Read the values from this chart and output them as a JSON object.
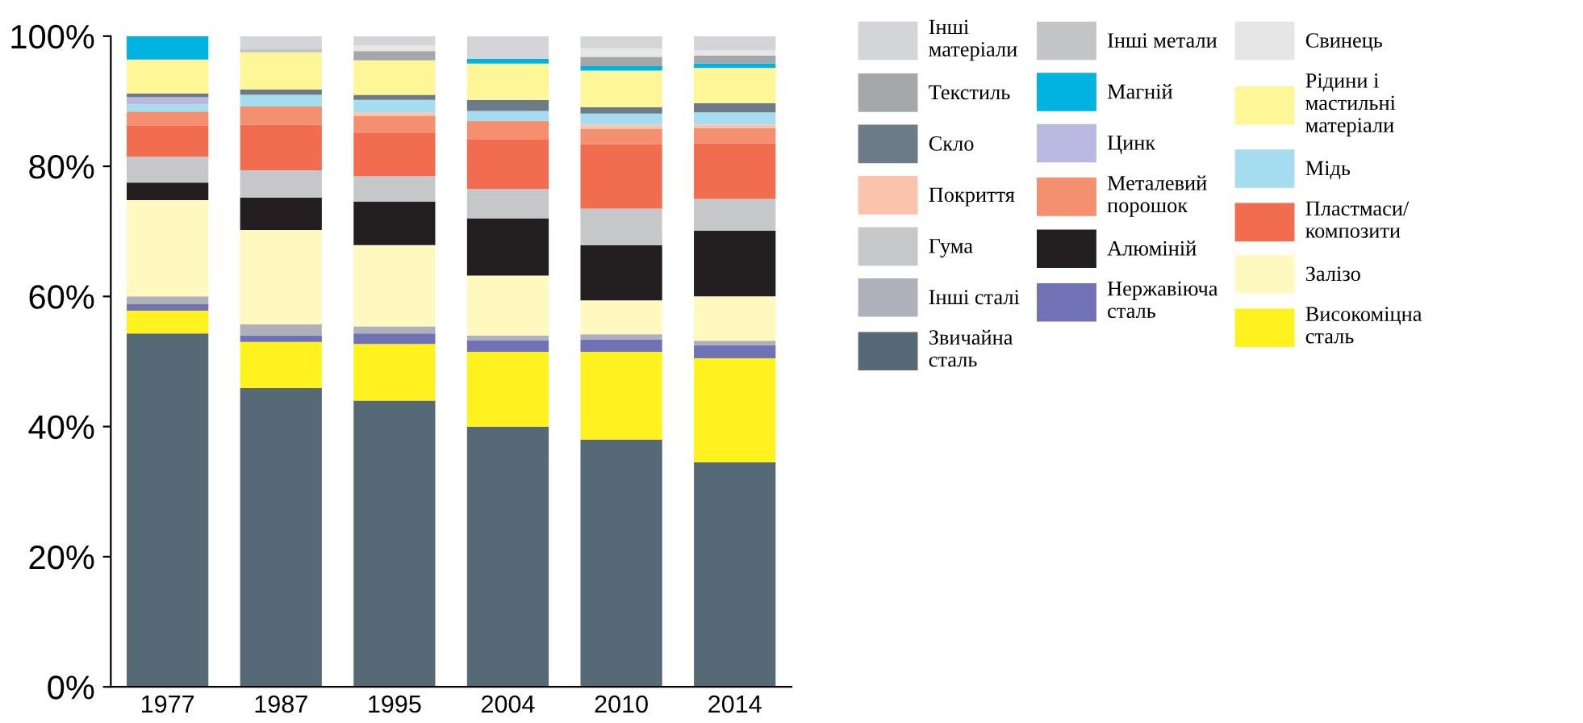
{
  "chart_data": {
    "type": "bar",
    "stacked": true,
    "categories": [
      "1977",
      "1987",
      "1995",
      "2004",
      "2010",
      "2014"
    ],
    "ylim": [
      0,
      100
    ],
    "yticks": [
      {
        "value": 0,
        "label": "0%"
      },
      {
        "value": 20,
        "label": "20%"
      },
      {
        "value": 40,
        "label": "40%"
      },
      {
        "value": 60,
        "label": "60%"
      },
      {
        "value": 80,
        "label": "80%"
      },
      {
        "value": 100,
        "label": "100%"
      }
    ],
    "grid": false,
    "legend": "right",
    "series": [
      {
        "name": "Звичайна\nсталь",
        "color": "#566977",
        "values": [
          54.3,
          45.9,
          44.0,
          40.0,
          38.0,
          34.5
        ]
      },
      {
        "name": "Високоміцна\nсталь",
        "color": "#fff21f",
        "values": [
          3.5,
          7.1,
          8.7,
          11.5,
          13.5,
          16.0
        ]
      },
      {
        "name": "Нержавіюча\nсталь",
        "color": "#7172b5",
        "values": [
          1.0,
          1.0,
          1.6,
          1.8,
          1.9,
          2.0
        ]
      },
      {
        "name": "Інші сталі",
        "color": "#aeb1bb",
        "values": [
          1.2,
          1.7,
          1.1,
          0.7,
          0.8,
          0.7
        ]
      },
      {
        "name": "Залізо",
        "color": "#fff8bf",
        "values": [
          14.8,
          14.5,
          12.5,
          9.2,
          5.2,
          6.8
        ]
      },
      {
        "name": "Алюміній",
        "color": "#231f20",
        "values": [
          2.7,
          5.0,
          6.7,
          8.8,
          8.5,
          10.1
        ]
      },
      {
        "name": "Гума",
        "color": "#c6c7c9",
        "values": [
          4.0,
          4.2,
          3.9,
          4.5,
          5.6,
          4.9
        ]
      },
      {
        "name": "Пластмаси/\nкомпозити",
        "color": "#f26c4f",
        "values": [
          4.8,
          7.0,
          6.7,
          7.7,
          9.9,
          8.5
        ]
      },
      {
        "name": "Металевий\nпорошок",
        "color": "#f4906f",
        "values": [
          2.1,
          2.8,
          2.5,
          2.8,
          2.3,
          2.4
        ]
      },
      {
        "name": "Покриття",
        "color": "#f9c4ab",
        "values": [
          0,
          0,
          0.6,
          0,
          0.7,
          0.5
        ]
      },
      {
        "name": "Мідь",
        "color": "#a5dcf0",
        "values": [
          1.1,
          1.8,
          1.9,
          1.5,
          1.7,
          1.9
        ]
      },
      {
        "name": "Цинк",
        "color": "#b9b8e0",
        "values": [
          1.1,
          0,
          0,
          0,
          0,
          0
        ]
      },
      {
        "name": "Скло",
        "color": "#6d7b86",
        "values": [
          0.6,
          0.8,
          0.8,
          1.7,
          1.0,
          1.4
        ]
      },
      {
        "name": "Рідини і\nмастильні\nматеріали",
        "color": "#fff697",
        "values": [
          5.2,
          5.7,
          5.3,
          5.6,
          5.6,
          5.4
        ]
      },
      {
        "name": "Магній",
        "color": "#00b3e0",
        "values": [
          3.6,
          0,
          0,
          0.7,
          0.7,
          0.7
        ]
      },
      {
        "name": "Текстиль",
        "color": "#a6a7a9",
        "values": [
          0,
          0,
          1.4,
          0,
          1.4,
          1.2
        ]
      },
      {
        "name": "Свинець",
        "color": "#e6e6e7",
        "values": [
          0,
          0,
          0.9,
          0,
          1.3,
          0.8
        ]
      },
      {
        "name": "Інші метали",
        "color": "#c4c5c7",
        "values": [
          0,
          0.5,
          0,
          0,
          0,
          0
        ]
      },
      {
        "name": "Інші\nматеріали",
        "color": "#d3d5d8",
        "values": [
          0,
          2.0,
          1.4,
          3.5,
          1.9,
          2.2
        ]
      }
    ]
  }
}
